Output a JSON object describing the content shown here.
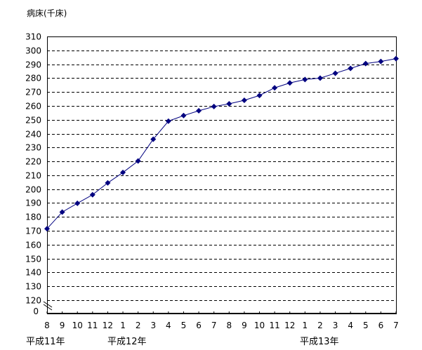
{
  "chart_data": {
    "type": "line",
    "title": "",
    "ylabel": "病床(千床)",
    "xlabel": "",
    "ylim": [
      120,
      310
    ],
    "axis_break": true,
    "axis_break_label": "0",
    "yticks": [
      120,
      130,
      140,
      150,
      160,
      170,
      180,
      190,
      200,
      210,
      220,
      230,
      240,
      250,
      260,
      270,
      280,
      290,
      300,
      310
    ],
    "grid": "horizontal dashed",
    "categories": [
      "8",
      "9",
      "10",
      "11",
      "12",
      "1",
      "2",
      "3",
      "4",
      "5",
      "6",
      "7",
      "8",
      "9",
      "10",
      "11",
      "12",
      "1",
      "2",
      "3",
      "4",
      "5",
      "6",
      "7"
    ],
    "year_labels": [
      "平成11年",
      "平成12年",
      "平成13年"
    ],
    "series": [
      {
        "color": "#000080",
        "marker": "diamond",
        "values": [
          171.5,
          183.5,
          189.8,
          196,
          204.5,
          212,
          220.3,
          236,
          249,
          253,
          256.5,
          259.5,
          261.5,
          264,
          267.5,
          273,
          276.5,
          279,
          280,
          283.5,
          287,
          290.5,
          292,
          294
        ]
      }
    ]
  }
}
